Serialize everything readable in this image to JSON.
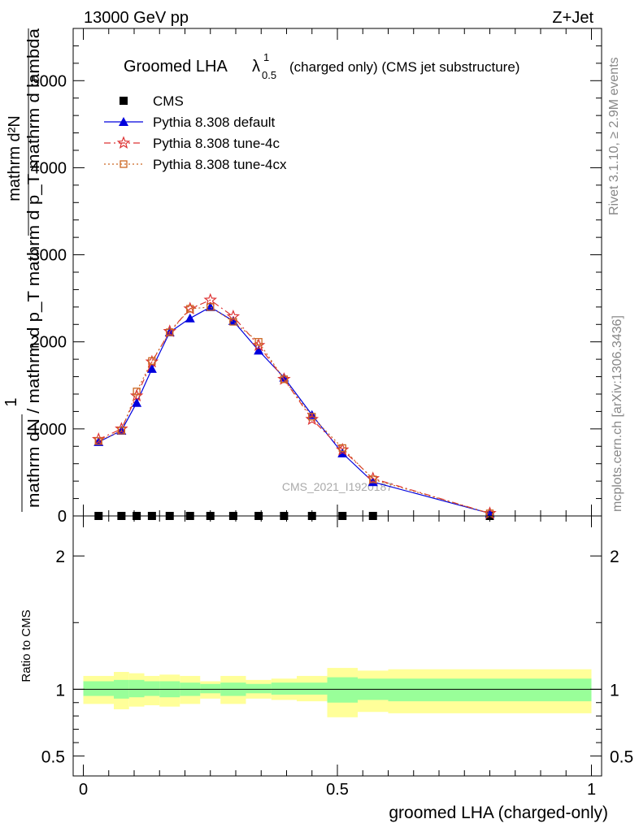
{
  "header": {
    "energy_label": "13000 GeV pp",
    "process_label": "Z+Jet"
  },
  "side_labels": {
    "rivet": "Rivet 3.1.10, ≥ 2.9M events",
    "mcplots": "mcplots.cern.ch [arXiv:1306.3436]"
  },
  "chart_data": [
    {
      "type": "line",
      "title": "Groomed LHA",
      "title_symbol": "λ",
      "title_sup": "1",
      "title_sub": "0.5",
      "title_suffix": "(charged only) (CMS jet substructure)",
      "ylabel_fraction_top": "1",
      "ylabel_numerator": "mathrm d²N",
      "ylabel_denominator": "mathrm dN / mathrm d p_T mathrm d p_T mathrm d lambda",
      "watermark": "CMS_2021_I1920187",
      "xlim": [
        -0.02,
        1.02
      ],
      "ylim": [
        0,
        5600
      ],
      "ytick_labels": [
        "0",
        "1000",
        "2000",
        "3000",
        "4000",
        "5000"
      ],
      "ytick_values": [
        0,
        1000,
        2000,
        3000,
        4000,
        5000
      ],
      "grid": false,
      "legend_position": "top-left",
      "bin_edges": [
        0,
        0.06,
        0.09,
        0.12,
        0.15,
        0.19,
        0.23,
        0.27,
        0.32,
        0.37,
        0.42,
        0.48,
        0.54,
        0.6,
        1.0
      ],
      "x": [
        0.03,
        0.075,
        0.105,
        0.135,
        0.17,
        0.21,
        0.25,
        0.295,
        0.345,
        0.395,
        0.45,
        0.51,
        0.57,
        0.8
      ],
      "series": [
        {
          "name": "CMS",
          "marker": "square",
          "color": "#000000",
          "values": [
            0,
            0,
            0,
            0,
            0,
            0,
            0,
            0,
            0,
            0,
            0,
            0,
            0,
            0
          ]
        },
        {
          "name": "Pythia 8.308 default",
          "marker": "triangle",
          "color": "#0000dd",
          "dash": "solid",
          "values": [
            850,
            980,
            1300,
            1690,
            2110,
            2270,
            2400,
            2240,
            1900,
            1590,
            1160,
            720,
            390,
            30
          ]
        },
        {
          "name": "Pythia 8.308 tune-4c",
          "marker": "star",
          "color": "#dd3333",
          "dash": "dashdot",
          "values": [
            880,
            1000,
            1380,
            1770,
            2120,
            2380,
            2480,
            2290,
            1960,
            1570,
            1110,
            760,
            430,
            30
          ]
        },
        {
          "name": "Pythia 8.308 tune-4cx",
          "marker": "open-square",
          "color": "#cc6622",
          "dash": "dotted",
          "values": [
            860,
            980,
            1430,
            1780,
            2110,
            2380,
            2400,
            2230,
            2000,
            1570,
            1140,
            780,
            420,
            30
          ]
        }
      ]
    },
    {
      "type": "area",
      "ylabel": "Ratio to CMS",
      "xlabel": "groomed LHA (charged-only)",
      "xlim": [
        -0.02,
        1.02
      ],
      "ylim": [
        0.35,
        2.3
      ],
      "ytick_labels": [
        "0.5",
        "1",
        "2"
      ],
      "ytick_values": [
        0.5,
        1,
        2
      ],
      "xtick_labels": [
        "0",
        "0.5",
        "1"
      ],
      "xtick_values": [
        0,
        0.5,
        1
      ],
      "reference_line": 1,
      "bands": {
        "bin_edges": [
          0,
          0.06,
          0.09,
          0.12,
          0.15,
          0.19,
          0.23,
          0.27,
          0.32,
          0.37,
          0.42,
          0.48,
          0.54,
          0.6,
          1.0
        ],
        "stat_syst_colors": {
          "inner": "#99ff99",
          "outer": "#ffff99"
        },
        "inner_lo": [
          0.95,
          0.93,
          0.94,
          0.95,
          0.94,
          0.95,
          0.97,
          0.95,
          0.97,
          0.96,
          0.96,
          0.9,
          0.92,
          0.91
        ],
        "inner_hi": [
          1.06,
          1.07,
          1.07,
          1.06,
          1.06,
          1.05,
          1.04,
          1.05,
          1.04,
          1.05,
          1.05,
          1.09,
          1.08,
          1.08
        ],
        "outer_lo": [
          0.89,
          0.85,
          0.87,
          0.88,
          0.87,
          0.89,
          0.93,
          0.89,
          0.93,
          0.92,
          0.91,
          0.79,
          0.83,
          0.82
        ],
        "outer_hi": [
          1.1,
          1.13,
          1.12,
          1.1,
          1.11,
          1.1,
          1.06,
          1.1,
          1.07,
          1.08,
          1.1,
          1.16,
          1.14,
          1.15
        ]
      }
    }
  ]
}
